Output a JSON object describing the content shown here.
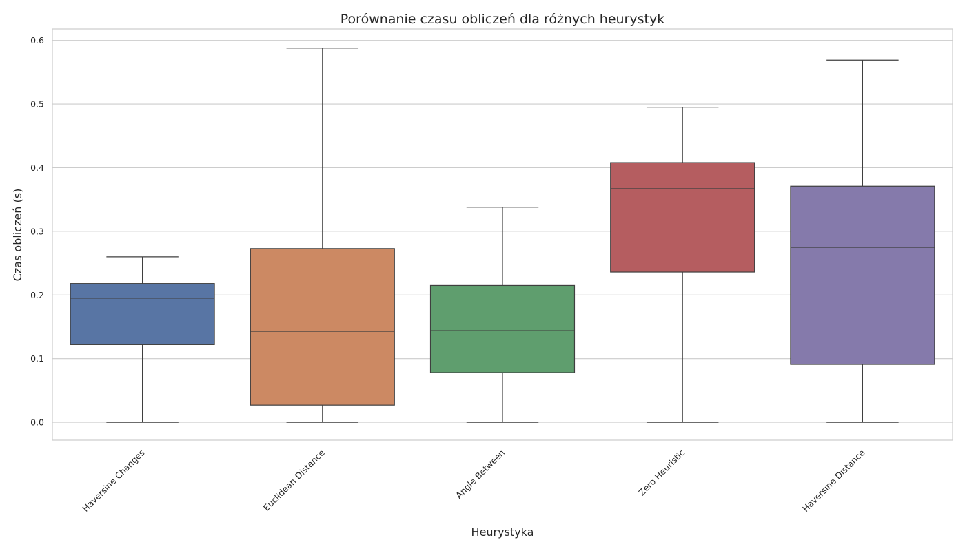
{
  "chart_data": {
    "type": "box",
    "title": "Porównanie czasu obliczeń dla różnych heurystyk",
    "xlabel": "Heurystyka",
    "ylabel": "Czas obliczeń (s)",
    "ylim": [
      -0.028,
      0.618
    ],
    "yticks": [
      "0.0",
      "0.1",
      "0.2",
      "0.3",
      "0.4",
      "0.5",
      "0.6"
    ],
    "grid": true,
    "categories": [
      "Haversine Changes",
      "Euclidean Distance",
      "Angle Between",
      "Zero Heuristic",
      "Haversine Distance"
    ],
    "boxes": [
      {
        "category": "Haversine Changes",
        "min": 0.0,
        "q1": 0.122,
        "median": 0.195,
        "q3": 0.218,
        "max": 0.26,
        "color": "#5875a4"
      },
      {
        "category": "Euclidean Distance",
        "min": 0.0,
        "q1": 0.027,
        "median": 0.143,
        "q3": 0.273,
        "max": 0.588,
        "color": "#cc8963"
      },
      {
        "category": "Angle Between",
        "min": 0.0,
        "q1": 0.078,
        "median": 0.144,
        "q3": 0.215,
        "max": 0.338,
        "color": "#5f9e6e"
      },
      {
        "category": "Zero Heuristic",
        "min": 0.0,
        "q1": 0.236,
        "median": 0.367,
        "q3": 0.408,
        "max": 0.495,
        "color": "#b55d60"
      },
      {
        "category": "Haversine Distance",
        "min": 0.0,
        "q1": 0.091,
        "median": 0.275,
        "q3": 0.371,
        "max": 0.569,
        "color": "#857aab"
      }
    ]
  },
  "colors": {
    "grid": "#cccccc",
    "frame": "#cccccc",
    "line": "#3f3f3f",
    "text": "#262626"
  }
}
